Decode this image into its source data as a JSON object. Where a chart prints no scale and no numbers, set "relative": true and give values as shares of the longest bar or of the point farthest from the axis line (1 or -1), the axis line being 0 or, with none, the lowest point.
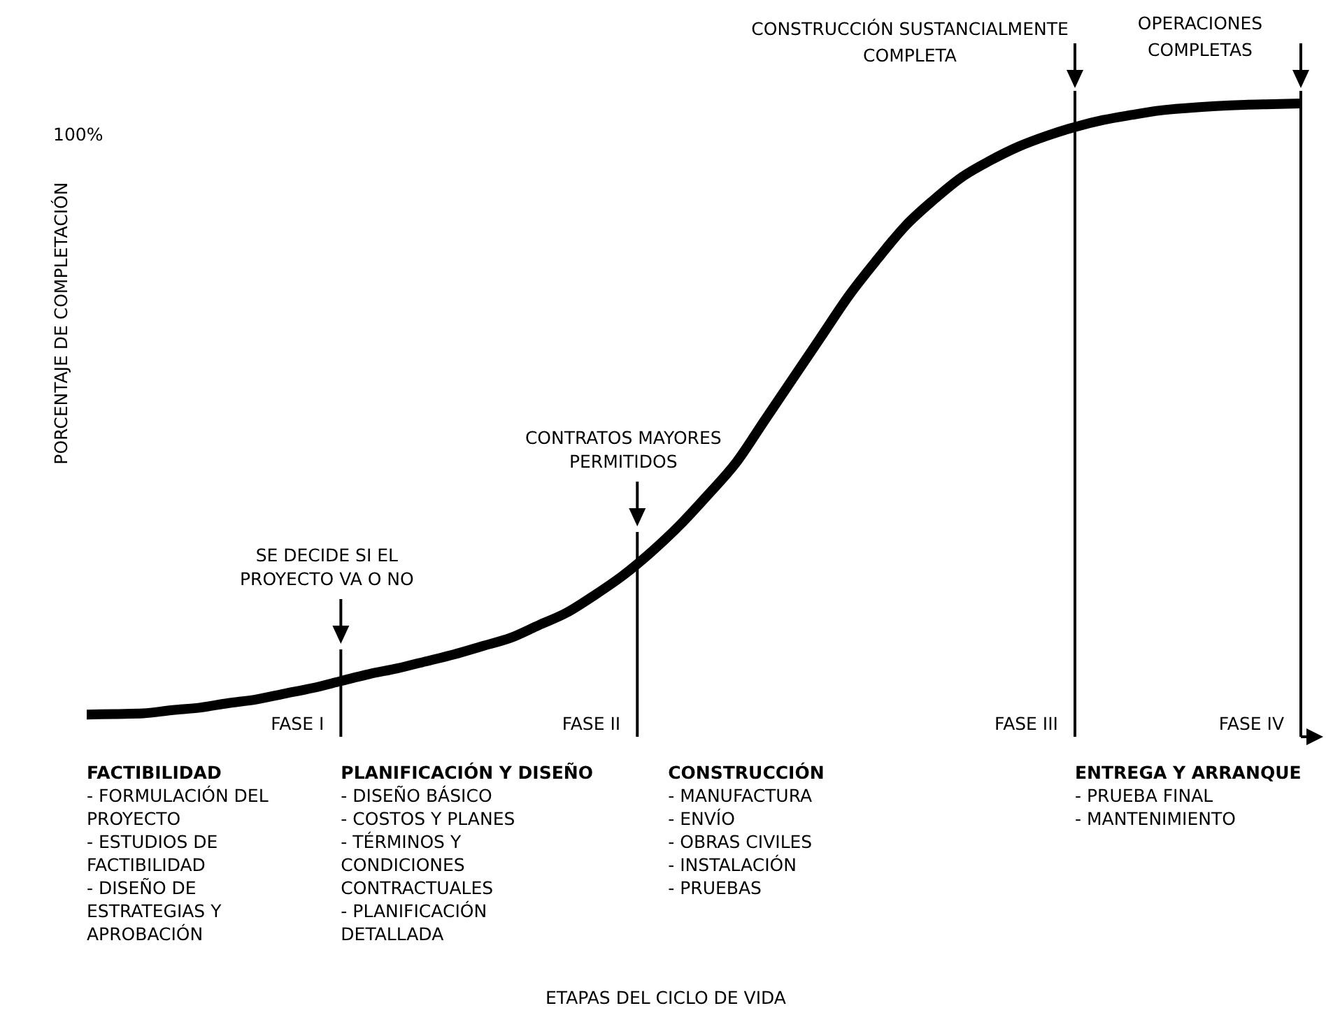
{
  "chart_data": {
    "type": "line",
    "relative": true,
    "ylabel": "PORCENTAJE DE COMPLETACIÓN",
    "categories": [
      null,
      null,
      null,
      null,
      null,
      null,
      null,
      null,
      null,
      null,
      null,
      null,
      null,
      null,
      null,
      null,
      null,
      null,
      null,
      null,
      null,
      null,
      null,
      null,
      null,
      null,
      null,
      null,
      null,
      null,
      null,
      null,
      null,
      null,
      null,
      null,
      null,
      null,
      null,
      null,
      null,
      null,
      null,
      null
    ],
    "series": [
      {
        "color": "#000000",
        "values": [
          0.035,
          0.036,
          0.037,
          0.042,
          0.046,
          0.053,
          0.059,
          0.068,
          0.077,
          0.088,
          0.099,
          0.108,
          0.119,
          0.13,
          0.143,
          0.156,
          0.176,
          0.196,
          0.224,
          0.255,
          0.292,
          0.334,
          0.382,
          0.433,
          0.499,
          0.565,
          0.631,
          0.697,
          0.754,
          0.807,
          0.848,
          0.884,
          0.91,
          0.932,
          0.949,
          0.963,
          0.974,
          0.982,
          0.989,
          0.993,
          0.996,
          0.998,
          0.999,
          1
        ]
      }
    ],
    "annotations": [
      "OPERACIONES\nCOMPLETAS",
      "CONSTRUCCIÓN SUSTANCIALMENTE\nCOMPLETA",
      "100%",
      "CONTRATOS MAYORES\nPERMITIDOS",
      "SE DECIDE SI EL\nPROYECTO VA O NO",
      "FASE I",
      "FASE II",
      "FASE III",
      "FASE IV",
      "FACTIBILIDAD\n- FORMULACIÓN DEL\nPROYECTO\n- ESTUDIOS DE\nFACTIBILIDAD\n- DISEÑO DE\nESTRATEGIAS Y\nAPROBACIÓN",
      "PLANIFICACIÓN Y DISEÑO\n- DISEÑO BÁSICO\n- COSTOS Y PLANES\n- TÉRMINOS Y\nCONDICIONES\nCONTRACTUALES\n- PLANIFICACIÓN\nDETALLADA",
      "CONSTRUCCIÓN\n- MANUFACTURA\n- ENVÍO\n- OBRAS CIVILES\n- INSTALACIÓN\n- PRUEBAS",
      "ENTREGA Y ARRANQUE\n- PRUEBA FINAL\n- MANTENIMIENTO",
      "ETAPAS DEL CICLO DE VIDA"
    ]
  }
}
